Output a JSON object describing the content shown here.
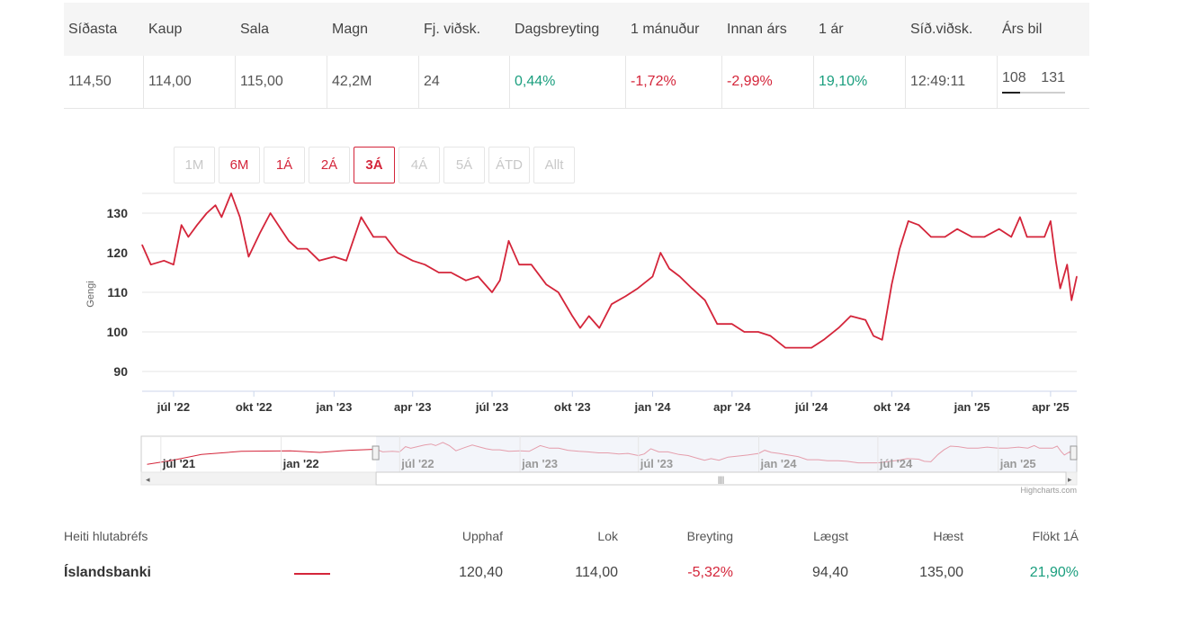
{
  "quote": {
    "headers": [
      "Síðasta",
      "Kaup",
      "Sala",
      "Magn",
      "Fj. viðsk.",
      "Dagsbreyting",
      "1 mánuður",
      "Innan árs",
      "1 ár",
      "Síð.viðsk.",
      "Árs bil"
    ],
    "values": [
      "114,50",
      "114,00",
      "115,00",
      "42,2M",
      "24",
      "0,44%",
      "-1,72%",
      "-2,99%",
      "19,10%",
      "12:49:11"
    ],
    "year_range": {
      "low": "108",
      "high": "131",
      "position": 0.28
    }
  },
  "range_buttons": [
    {
      "label": "1M",
      "state": "disabled"
    },
    {
      "label": "6M",
      "state": "enabled"
    },
    {
      "label": "1Á",
      "state": "enabled"
    },
    {
      "label": "2Á",
      "state": "enabled"
    },
    {
      "label": "3Á",
      "state": "active"
    },
    {
      "label": "4Á",
      "state": "disabled"
    },
    {
      "label": "5Á",
      "state": "disabled"
    },
    {
      "label": "ÁTD",
      "state": "disabled"
    },
    {
      "label": "Allt",
      "state": "disabled"
    }
  ],
  "credits": "Highcharts.com",
  "chart_data": {
    "type": "line",
    "ylabel": "Gengi",
    "ylim": [
      85,
      135
    ],
    "yticks": [
      90,
      100,
      110,
      120,
      130
    ],
    "xlabel": "",
    "color": "#d4253a",
    "x_ticks": [
      "júl '22",
      "okt '22",
      "jan '23",
      "apr '23",
      "júl '23",
      "okt '23",
      "jan '24",
      "apr '24",
      "júl '24",
      "okt '24",
      "jan '25",
      "apr '25"
    ],
    "navigator_ticks": [
      "júl '21",
      "jan '22",
      "júl '22",
      "jan '23",
      "júl '23",
      "jan '24",
      "júl '24",
      "jan '25"
    ],
    "series": [
      {
        "name": "Íslandsbanki",
        "x": [
          "2022-05-26",
          "2022-06-05",
          "2022-06-20",
          "2022-07-01",
          "2022-07-10",
          "2022-07-18",
          "2022-07-28",
          "2022-08-08",
          "2022-08-18",
          "2022-08-25",
          "2022-09-05",
          "2022-09-15",
          "2022-09-25",
          "2022-10-08",
          "2022-10-20",
          "2022-11-01",
          "2022-11-10",
          "2022-11-20",
          "2022-12-01",
          "2022-12-15",
          "2023-01-01",
          "2023-01-15",
          "2023-02-01",
          "2023-02-15",
          "2023-03-01",
          "2023-03-15",
          "2023-04-01",
          "2023-04-15",
          "2023-05-01",
          "2023-05-15",
          "2023-06-01",
          "2023-06-15",
          "2023-07-01",
          "2023-07-10",
          "2023-07-20",
          "2023-08-01",
          "2023-08-15",
          "2023-09-01",
          "2023-09-15",
          "2023-10-01",
          "2023-10-10",
          "2023-10-20",
          "2023-11-01",
          "2023-11-15",
          "2023-12-01",
          "2023-12-15",
          "2024-01-01",
          "2024-01-10",
          "2024-01-20",
          "2024-02-01",
          "2024-02-15",
          "2024-03-01",
          "2024-03-15",
          "2024-04-01",
          "2024-04-15",
          "2024-05-01",
          "2024-05-15",
          "2024-06-01",
          "2024-06-05",
          "2024-06-20",
          "2024-07-01",
          "2024-07-15",
          "2024-08-01",
          "2024-08-15",
          "2024-09-01",
          "2024-09-10",
          "2024-09-20",
          "2024-10-01",
          "2024-10-10",
          "2024-10-20",
          "2024-11-01",
          "2024-11-15",
          "2024-12-01",
          "2024-12-15",
          "2025-01-01",
          "2025-01-15",
          "2025-02-01",
          "2025-02-15",
          "2025-02-25",
          "2025-03-05",
          "2025-03-15",
          "2025-03-25",
          "2025-04-01",
          "2025-04-07",
          "2025-04-12",
          "2025-04-20",
          "2025-04-25",
          "2025-05-01"
        ],
        "values": [
          122,
          117,
          118,
          117,
          127,
          124,
          127,
          130,
          132,
          129,
          135,
          129,
          119,
          125,
          130,
          126,
          123,
          121,
          121,
          118,
          119,
          118,
          129,
          124,
          124,
          120,
          118,
          117,
          115,
          115,
          113,
          114,
          110,
          113,
          123,
          117,
          117,
          112,
          110,
          104,
          101,
          104,
          101,
          107,
          109,
          111,
          114,
          120,
          116,
          114,
          111,
          108,
          102,
          102,
          100,
          100,
          99,
          96,
          96,
          96,
          96,
          98,
          101,
          104,
          103,
          99,
          98,
          112,
          121,
          128,
          127,
          124,
          124,
          126,
          124,
          124,
          126,
          124,
          129,
          124,
          124,
          124,
          128,
          118,
          111,
          117,
          108,
          114
        ]
      }
    ]
  },
  "summary": {
    "headers": {
      "name": "Heiti hlutabréfs",
      "start": "Upphaf",
      "end": "Lok",
      "change": "Breyting",
      "low": "Lægst",
      "high": "Hæst",
      "vol": "Flökt 1Á"
    },
    "row": {
      "name": "Íslandsbanki",
      "start": "120,40",
      "end": "114,00",
      "change": "-5,32%",
      "low": "94,40",
      "high": "135,00",
      "vol": "21,90%"
    }
  }
}
